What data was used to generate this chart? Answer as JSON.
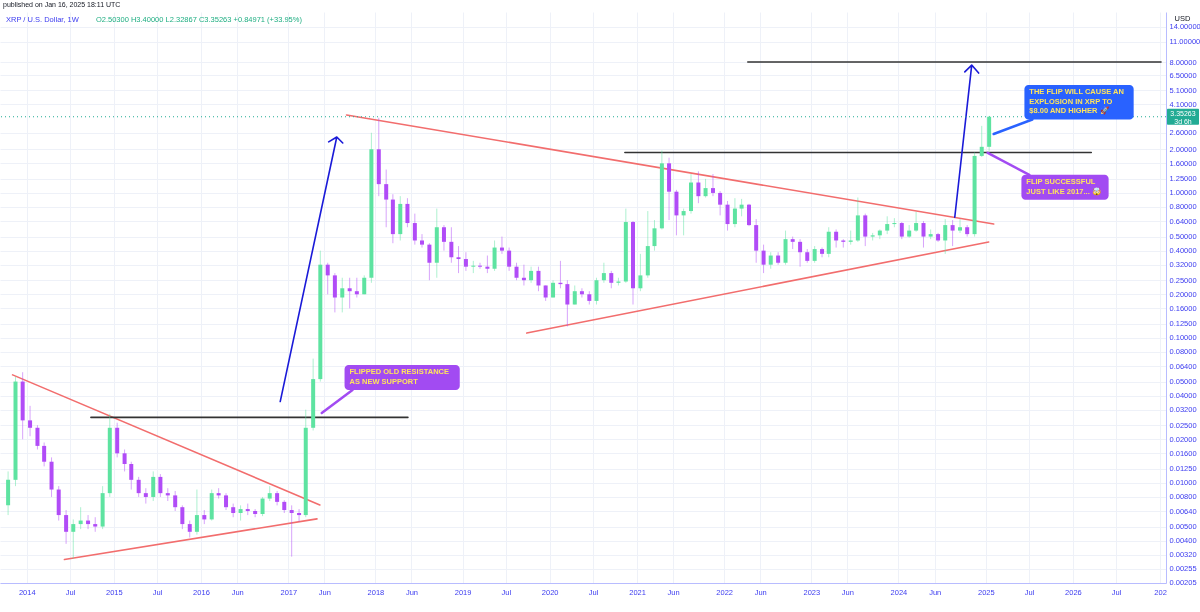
{
  "chart_data": {
    "type": "candlestick",
    "title": "XRP / U.S. Dollar, 1W",
    "subtitle": "O2.50300 H3.40000 L2.32867 C3.35263 +0.84971 (+33.95%)",
    "ylabel": "USD",
    "log": true,
    "grid": true,
    "xlim": [
      "2013-10-02",
      "2027-01-05"
    ],
    "ylim": [
      0.00204,
      17.7
    ],
    "xticks": [
      "2014",
      {
        "value": "2014-07-01",
        "label": "Jul"
      },
      "2015",
      {
        "value": "2015-07-01",
        "label": "Jul"
      },
      "2016",
      {
        "value": "2016-06-01",
        "label": "Jun"
      },
      "2017",
      {
        "value": "2017-06-01",
        "label": "Jun"
      },
      "2018",
      {
        "value": "2018-06-01",
        "label": "Jun"
      },
      "2019",
      {
        "value": "2019-07-01",
        "label": "Jul"
      },
      "2020",
      {
        "value": "2020-07-01",
        "label": "Jul"
      },
      "2021",
      {
        "value": "2021-06-01",
        "label": "Jun"
      },
      "2022",
      {
        "value": "2022-06-01",
        "label": "Jun"
      },
      "2023",
      {
        "value": "2023-06-01",
        "label": "Jun"
      },
      "2024",
      {
        "value": "2024-06-01",
        "label": "Jun"
      },
      "2025",
      {
        "value": "2025-07-01",
        "label": "Jul"
      },
      "2026",
      {
        "value": "2026-07-01",
        "label": "Jul"
      },
      {
        "value": "2027-01-01",
        "label": "202"
      }
    ],
    "yticks": [
      {
        "value": 14,
        "label": "14.00000"
      },
      {
        "value": 11,
        "label": "11.00000"
      },
      {
        "value": 8,
        "label": "8.00000"
      },
      {
        "value": 6.5,
        "label": "6.50000"
      },
      {
        "value": 5.1,
        "label": "5.10000"
      },
      {
        "value": 4.1,
        "label": "4.10000"
      },
      {
        "value": 2.6,
        "label": "2.60000"
      },
      {
        "value": 2,
        "label": "2.00000"
      },
      {
        "value": 1.6,
        "label": "1.60000"
      },
      {
        "value": 1.25,
        "label": "1.25000"
      },
      {
        "value": 1,
        "label": "1.00000"
      },
      {
        "value": 0.8,
        "label": "0.80000"
      },
      {
        "value": 0.64,
        "label": "0.64000"
      },
      {
        "value": 0.5,
        "label": "0.50000"
      },
      {
        "value": 0.4,
        "label": "0.40000"
      },
      {
        "value": 0.32,
        "label": "0.32000"
      },
      {
        "value": 0.25,
        "label": "0.25000"
      },
      {
        "value": 0.2,
        "label": "0.20000"
      },
      {
        "value": 0.16,
        "label": "0.16000"
      },
      {
        "value": 0.125,
        "label": "0.12500"
      },
      {
        "value": 0.1,
        "label": "0.10000"
      },
      {
        "value": 0.08,
        "label": "0.08000"
      },
      {
        "value": 0.064,
        "label": "0.06400"
      },
      {
        "value": 0.05,
        "label": "0.05000"
      },
      {
        "value": 0.04,
        "label": "0.04000"
      },
      {
        "value": 0.032,
        "label": "0.03200"
      },
      {
        "value": 0.025,
        "label": "0.02500"
      },
      {
        "value": 0.02,
        "label": "0.02000"
      },
      {
        "value": 0.016,
        "label": "0.01600"
      },
      {
        "value": 0.0125,
        "label": "0.01250"
      },
      {
        "value": 0.01,
        "label": "0.01000"
      },
      {
        "value": 0.008,
        "label": "0.00800"
      },
      {
        "value": 0.0064,
        "label": "0.00640"
      },
      {
        "value": 0.005,
        "label": "0.00500"
      },
      {
        "value": 0.004,
        "label": "0.00400"
      },
      {
        "value": 0.0032,
        "label": "0.00320"
      },
      {
        "value": 0.00255,
        "label": "0.00255"
      },
      {
        "value": 0.00205,
        "label": "0.00205"
      }
    ],
    "x": [
      "2013-10-15",
      "2013-11-15",
      "2013-12-15",
      "2014-01-15",
      "2014-02-15",
      "2014-03-15",
      "2014-04-15",
      "2014-05-15",
      "2014-06-15",
      "2014-07-15",
      "2014-08-15",
      "2014-09-15",
      "2014-10-15",
      "2014-11-15",
      "2014-12-15",
      "2015-01-15",
      "2015-02-15",
      "2015-03-15",
      "2015-04-15",
      "2015-05-15",
      "2015-06-15",
      "2015-07-15",
      "2015-08-15",
      "2015-09-15",
      "2015-10-15",
      "2015-11-15",
      "2015-12-15",
      "2016-01-15",
      "2016-02-15",
      "2016-03-15",
      "2016-04-15",
      "2016-05-15",
      "2016-06-15",
      "2016-07-15",
      "2016-08-15",
      "2016-09-15",
      "2016-10-15",
      "2016-11-15",
      "2016-12-15",
      "2017-01-15",
      "2017-02-15",
      "2017-03-15",
      "2017-04-15",
      "2017-05-15",
      "2017-06-15",
      "2017-07-15",
      "2017-08-15",
      "2017-09-15",
      "2017-10-15",
      "2017-11-15",
      "2017-12-15",
      "2018-01-15",
      "2018-02-15",
      "2018-03-15",
      "2018-04-15",
      "2018-05-15",
      "2018-06-15",
      "2018-07-15",
      "2018-08-15",
      "2018-09-15",
      "2018-10-15",
      "2018-11-15",
      "2018-12-15",
      "2019-01-15",
      "2019-02-15",
      "2019-03-15",
      "2019-04-15",
      "2019-05-15",
      "2019-06-15",
      "2019-07-15",
      "2019-08-15",
      "2019-09-15",
      "2019-10-15",
      "2019-11-15",
      "2019-12-15",
      "2020-01-15",
      "2020-02-15",
      "2020-03-15",
      "2020-04-15",
      "2020-05-15",
      "2020-06-15",
      "2020-07-15",
      "2020-08-15",
      "2020-09-15",
      "2020-10-15",
      "2020-11-15",
      "2020-12-15",
      "2021-01-15",
      "2021-02-15",
      "2021-03-15",
      "2021-04-15",
      "2021-05-15",
      "2021-06-15",
      "2021-07-15",
      "2021-08-15",
      "2021-09-15",
      "2021-10-15",
      "2021-11-15",
      "2021-12-15",
      "2022-01-15",
      "2022-02-15",
      "2022-03-15",
      "2022-04-15",
      "2022-05-15",
      "2022-06-15",
      "2022-07-15",
      "2022-08-15",
      "2022-09-15",
      "2022-10-15",
      "2022-11-15",
      "2022-12-15",
      "2023-01-15",
      "2023-02-15",
      "2023-03-15",
      "2023-04-15",
      "2023-05-15",
      "2023-06-15",
      "2023-07-15",
      "2023-08-15",
      "2023-09-15",
      "2023-10-15",
      "2023-11-15",
      "2023-12-15",
      "2024-01-15",
      "2024-02-15",
      "2024-03-15",
      "2024-04-15",
      "2024-05-15",
      "2024-06-15",
      "2024-07-15",
      "2024-08-15",
      "2024-09-15",
      "2024-10-15",
      "2024-11-15",
      "2024-12-15",
      "2025-01-15"
    ],
    "ohlc": [
      [
        0.007,
        0.012,
        0.006,
        0.0105
      ],
      [
        0.0105,
        0.054,
        0.0095,
        0.05
      ],
      [
        0.05,
        0.058,
        0.02,
        0.027
      ],
      [
        0.027,
        0.034,
        0.021,
        0.024
      ],
      [
        0.024,
        0.025,
        0.017,
        0.018
      ],
      [
        0.018,
        0.019,
        0.013,
        0.014
      ],
      [
        0.014,
        0.015,
        0.008,
        0.009
      ],
      [
        0.009,
        0.0095,
        0.0055,
        0.006
      ],
      [
        0.006,
        0.0065,
        0.0038,
        0.0046
      ],
      [
        0.0046,
        0.0056,
        0.003,
        0.0052
      ],
      [
        0.0052,
        0.0068,
        0.0048,
        0.0055
      ],
      [
        0.0055,
        0.006,
        0.0048,
        0.0052
      ],
      [
        0.0052,
        0.0058,
        0.0046,
        0.005
      ],
      [
        0.005,
        0.0095,
        0.0048,
        0.0085
      ],
      [
        0.0085,
        0.03,
        0.008,
        0.024
      ],
      [
        0.024,
        0.026,
        0.015,
        0.016
      ],
      [
        0.016,
        0.017,
        0.012,
        0.0135
      ],
      [
        0.0135,
        0.014,
        0.009,
        0.0105
      ],
      [
        0.0105,
        0.011,
        0.008,
        0.0085
      ],
      [
        0.0085,
        0.0092,
        0.0072,
        0.008
      ],
      [
        0.008,
        0.012,
        0.0075,
        0.011
      ],
      [
        0.011,
        0.0115,
        0.008,
        0.0085
      ],
      [
        0.0085,
        0.0092,
        0.0075,
        0.0082
      ],
      [
        0.0082,
        0.0088,
        0.0064,
        0.0068
      ],
      [
        0.0068,
        0.007,
        0.0048,
        0.0052
      ],
      [
        0.0052,
        0.0055,
        0.0042,
        0.0046
      ],
      [
        0.0046,
        0.009,
        0.0044,
        0.006
      ],
      [
        0.006,
        0.0065,
        0.0052,
        0.0056
      ],
      [
        0.0056,
        0.009,
        0.0055,
        0.0085
      ],
      [
        0.0085,
        0.0092,
        0.0078,
        0.0082
      ],
      [
        0.0082,
        0.0085,
        0.0065,
        0.0068
      ],
      [
        0.0068,
        0.0072,
        0.0058,
        0.0062
      ],
      [
        0.0062,
        0.007,
        0.0055,
        0.0066
      ],
      [
        0.0066,
        0.0072,
        0.006,
        0.0064
      ],
      [
        0.0064,
        0.0066,
        0.0058,
        0.0061
      ],
      [
        0.0061,
        0.008,
        0.0059,
        0.0078
      ],
      [
        0.0078,
        0.0095,
        0.0075,
        0.0085
      ],
      [
        0.0085,
        0.0088,
        0.007,
        0.0074
      ],
      [
        0.0074,
        0.0076,
        0.0062,
        0.0065
      ],
      [
        0.0065,
        0.007,
        0.0031,
        0.0062
      ],
      [
        0.0062,
        0.0066,
        0.0054,
        0.006
      ],
      [
        0.006,
        0.032,
        0.0058,
        0.024
      ],
      [
        0.024,
        0.072,
        0.023,
        0.052
      ],
      [
        0.052,
        0.4,
        0.05,
        0.32
      ],
      [
        0.32,
        0.33,
        0.2,
        0.27
      ],
      [
        0.27,
        0.28,
        0.15,
        0.19
      ],
      [
        0.19,
        0.26,
        0.15,
        0.22
      ],
      [
        0.22,
        0.26,
        0.16,
        0.21
      ],
      [
        0.21,
        0.26,
        0.19,
        0.2
      ],
      [
        0.2,
        0.27,
        0.2,
        0.26
      ],
      [
        0.26,
        2.6,
        0.24,
        2.0
      ],
      [
        2.0,
        3.3,
        0.95,
        1.15
      ],
      [
        1.15,
        1.45,
        0.58,
        0.9
      ],
      [
        0.9,
        0.98,
        0.45,
        0.52
      ],
      [
        0.52,
        0.95,
        0.47,
        0.84
      ],
      [
        0.84,
        0.92,
        0.58,
        0.62
      ],
      [
        0.62,
        0.72,
        0.44,
        0.47
      ],
      [
        0.47,
        0.52,
        0.42,
        0.44
      ],
      [
        0.44,
        0.45,
        0.25,
        0.33
      ],
      [
        0.33,
        0.78,
        0.26,
        0.58
      ],
      [
        0.58,
        0.6,
        0.4,
        0.46
      ],
      [
        0.46,
        0.58,
        0.33,
        0.36
      ],
      [
        0.36,
        0.43,
        0.28,
        0.35
      ],
      [
        0.35,
        0.39,
        0.29,
        0.31
      ],
      [
        0.31,
        0.34,
        0.28,
        0.315
      ],
      [
        0.315,
        0.33,
        0.3,
        0.31
      ],
      [
        0.31,
        0.37,
        0.28,
        0.3
      ],
      [
        0.3,
        0.47,
        0.29,
        0.42
      ],
      [
        0.42,
        0.5,
        0.38,
        0.4
      ],
      [
        0.4,
        0.42,
        0.29,
        0.31
      ],
      [
        0.31,
        0.33,
        0.25,
        0.26
      ],
      [
        0.26,
        0.32,
        0.23,
        0.25
      ],
      [
        0.25,
        0.31,
        0.24,
        0.29
      ],
      [
        0.29,
        0.31,
        0.21,
        0.23
      ],
      [
        0.23,
        0.23,
        0.18,
        0.19
      ],
      [
        0.19,
        0.25,
        0.19,
        0.24
      ],
      [
        0.24,
        0.34,
        0.22,
        0.235
      ],
      [
        0.235,
        0.25,
        0.12,
        0.17
      ],
      [
        0.17,
        0.23,
        0.17,
        0.21
      ],
      [
        0.21,
        0.22,
        0.19,
        0.2
      ],
      [
        0.2,
        0.21,
        0.17,
        0.18
      ],
      [
        0.18,
        0.26,
        0.17,
        0.25
      ],
      [
        0.25,
        0.33,
        0.24,
        0.28
      ],
      [
        0.28,
        0.29,
        0.22,
        0.24
      ],
      [
        0.24,
        0.26,
        0.23,
        0.245
      ],
      [
        0.245,
        0.78,
        0.24,
        0.63
      ],
      [
        0.63,
        0.64,
        0.17,
        0.22
      ],
      [
        0.22,
        0.38,
        0.21,
        0.27
      ],
      [
        0.27,
        0.75,
        0.26,
        0.43
      ],
      [
        0.43,
        0.65,
        0.4,
        0.57
      ],
      [
        0.57,
        1.96,
        0.56,
        1.6
      ],
      [
        1.6,
        1.75,
        0.65,
        1.02
      ],
      [
        1.02,
        1.05,
        0.51,
        0.7
      ],
      [
        0.7,
        0.78,
        0.51,
        0.75
      ],
      [
        0.75,
        1.35,
        0.72,
        1.18
      ],
      [
        1.18,
        1.41,
        0.85,
        0.95
      ],
      [
        0.95,
        1.25,
        0.93,
        1.08
      ],
      [
        1.08,
        1.35,
        0.95,
        1.0
      ],
      [
        1.0,
        1.03,
        0.7,
        0.83
      ],
      [
        0.83,
        0.88,
        0.55,
        0.61
      ],
      [
        0.61,
        0.92,
        0.58,
        0.78
      ],
      [
        0.78,
        0.91,
        0.69,
        0.83
      ],
      [
        0.83,
        0.84,
        0.59,
        0.6
      ],
      [
        0.6,
        0.66,
        0.33,
        0.4
      ],
      [
        0.4,
        0.44,
        0.28,
        0.32
      ],
      [
        0.32,
        0.39,
        0.3,
        0.37
      ],
      [
        0.37,
        0.39,
        0.32,
        0.33
      ],
      [
        0.33,
        0.55,
        0.32,
        0.48
      ],
      [
        0.48,
        0.5,
        0.41,
        0.46
      ],
      [
        0.46,
        0.48,
        0.31,
        0.39
      ],
      [
        0.39,
        0.41,
        0.33,
        0.34
      ],
      [
        0.34,
        0.43,
        0.33,
        0.41
      ],
      [
        0.41,
        0.42,
        0.36,
        0.38
      ],
      [
        0.38,
        0.58,
        0.36,
        0.54
      ],
      [
        0.54,
        0.56,
        0.42,
        0.47
      ],
      [
        0.47,
        0.48,
        0.42,
        0.46
      ],
      [
        0.46,
        0.55,
        0.44,
        0.47
      ],
      [
        0.47,
        0.93,
        0.46,
        0.7
      ],
      [
        0.7,
        0.72,
        0.43,
        0.5
      ],
      [
        0.5,
        0.53,
        0.47,
        0.51
      ],
      [
        0.51,
        0.56,
        0.48,
        0.55
      ],
      [
        0.55,
        0.69,
        0.52,
        0.61
      ],
      [
        0.61,
        0.67,
        0.58,
        0.62
      ],
      [
        0.62,
        0.63,
        0.48,
        0.5
      ],
      [
        0.5,
        0.6,
        0.49,
        0.55
      ],
      [
        0.55,
        0.74,
        0.54,
        0.62
      ],
      [
        0.62,
        0.64,
        0.42,
        0.5
      ],
      [
        0.5,
        0.56,
        0.48,
        0.52
      ],
      [
        0.52,
        0.53,
        0.46,
        0.47
      ],
      [
        0.47,
        0.66,
        0.38,
        0.6
      ],
      [
        0.6,
        0.65,
        0.43,
        0.55
      ],
      [
        0.55,
        0.66,
        0.53,
        0.58
      ],
      [
        0.58,
        0.6,
        0.5,
        0.52
      ],
      [
        0.52,
        1.9,
        0.5,
        1.8
      ],
      [
        1.8,
        2.9,
        1.77,
        2.08
      ],
      [
        2.08,
        3.4,
        1.95,
        3.35263
      ]
    ],
    "colors": [
      "#5ee3a1",
      "#5ee3a1",
      "#b14cf7",
      "#b14cf7",
      "#b14cf7",
      "#b14cf7",
      "#b14cf7",
      "#b14cf7",
      "#b14cf7",
      "#5ee3a1",
      "#5ee3a1",
      "#b14cf7",
      "#b14cf7",
      "#5ee3a1",
      "#5ee3a1",
      "#b14cf7",
      "#b14cf7",
      "#b14cf7",
      "#b14cf7",
      "#b14cf7",
      "#5ee3a1",
      "#b14cf7",
      "#b14cf7",
      "#b14cf7",
      "#b14cf7",
      "#b14cf7",
      "#5ee3a1",
      "#b14cf7",
      "#5ee3a1",
      "#b14cf7",
      "#b14cf7",
      "#b14cf7",
      "#5ee3a1",
      "#b14cf7",
      "#b14cf7",
      "#5ee3a1",
      "#5ee3a1",
      "#b14cf7",
      "#b14cf7",
      "#b14cf7",
      "#b14cf7",
      "#5ee3a1",
      "#5ee3a1",
      "#5ee3a1",
      "#b14cf7",
      "#b14cf7",
      "#5ee3a1",
      "#b14cf7",
      "#b14cf7",
      "#5ee3a1",
      "#5ee3a1",
      "#b14cf7",
      "#b14cf7",
      "#b14cf7",
      "#5ee3a1",
      "#b14cf7",
      "#b14cf7",
      "#b14cf7",
      "#b14cf7",
      "#5ee3a1",
      "#b14cf7",
      "#b14cf7",
      "#b14cf7",
      "#b14cf7",
      "#5ee3a1",
      "#b14cf7",
      "#b14cf7",
      "#5ee3a1",
      "#b14cf7",
      "#b14cf7",
      "#b14cf7",
      "#b14cf7",
      "#5ee3a1",
      "#b14cf7",
      "#b14cf7",
      "#5ee3a1",
      "#b14cf7",
      "#b14cf7",
      "#5ee3a1",
      "#b14cf7",
      "#b14cf7",
      "#5ee3a1",
      "#5ee3a1",
      "#b14cf7",
      "#5ee3a1",
      "#5ee3a1",
      "#b14cf7",
      "#5ee3a1",
      "#5ee3a1",
      "#5ee3a1",
      "#5ee3a1",
      "#b14cf7",
      "#b14cf7",
      "#5ee3a1",
      "#5ee3a1",
      "#b14cf7",
      "#5ee3a1",
      "#b14cf7",
      "#b14cf7",
      "#b14cf7",
      "#5ee3a1",
      "#5ee3a1",
      "#b14cf7",
      "#b14cf7",
      "#b14cf7",
      "#5ee3a1",
      "#b14cf7",
      "#5ee3a1",
      "#b14cf7",
      "#b14cf7",
      "#b14cf7",
      "#5ee3a1",
      "#b14cf7",
      "#5ee3a1",
      "#b14cf7",
      "#b14cf7",
      "#5ee3a1",
      "#5ee3a1",
      "#b14cf7",
      "#5ee3a1",
      "#5ee3a1",
      "#5ee3a1",
      "#5ee3a1",
      "#b14cf7",
      "#5ee3a1",
      "#5ee3a1",
      "#b14cf7",
      "#5ee3a1",
      "#b14cf7",
      "#5ee3a1",
      "#b14cf7",
      "#5ee3a1",
      "#b14cf7",
      "#5ee3a1",
      "#5ee3a1",
      "#5ee3a1"
    ],
    "series": [
      {
        "type": "line",
        "color": "#f26d6d",
        "x": [
          "2013-11-03",
          "2017-05-13"
        ],
        "values": [
          0.0556,
          0.00705
        ]
      },
      {
        "type": "line",
        "color": "#f26d6d",
        "x": [
          "2014-06-08",
          "2017-05-01"
        ],
        "values": [
          0.00296,
          0.00565
        ]
      },
      {
        "type": "line",
        "color": "#f26d6d",
        "x": [
          "2017-09-02",
          "2025-02-03"
        ],
        "values": [
          3.45,
          0.61
        ]
      },
      {
        "type": "line",
        "color": "#f26d6d",
        "x": [
          "2019-09-27",
          "2025-01-13"
        ],
        "values": [
          0.108,
          0.459
        ]
      },
      {
        "type": "line",
        "color": "#333333",
        "x": [
          "2014-09-27",
          "2018-05-17"
        ],
        "values": [
          0.0283,
          0.0283
        ]
      },
      {
        "type": "line",
        "color": "#333333",
        "x": [
          "2020-11-11",
          "2026-03-19"
        ],
        "values": [
          1.9,
          1.9
        ]
      },
      {
        "type": "line",
        "color": "#333333",
        "x": [
          "2022-04-10",
          "2027-01-05"
        ],
        "values": [
          8,
          8
        ]
      },
      {
        "type": "line",
        "color": "#1a1ad8",
        "x": [
          "2016-11-28",
          "2017-07-23",
          "2017-06-19",
          "2017-07-23",
          "2017-08-17"
        ],
        "values": [
          0.0364,
          2.43,
          2.25,
          2.43,
          2.21
        ]
      },
      {
        "type": "line",
        "color": "#1a1ad8",
        "x": [
          "2024-08-24",
          "2024-11-03",
          "2024-10-05",
          "2024-11-03",
          "2024-12-02"
        ],
        "values": [
          0.68,
          7.62,
          6.84,
          7.62,
          6.71
        ]
      }
    ],
    "ref_lines": [
      {
        "axis": "y",
        "value": 3.35263,
        "label": "3.35263\n3d 6h",
        "color": "#22ab94",
        "line_style": "dotted"
      }
    ],
    "annotations": [
      "published on Jan 16, 2025 18:11 UTC",
      {
        "text": "FLIPPED OLD RESISTANCE\nAS NEW SUPPORT",
        "x": "2017-05-21",
        "y": 0.0304
      },
      {
        "text": "THE FLIP WILL CAUSE AN\nEXPLOSION IN XRP TO\n$8.00 AND HIGHER 🚀",
        "x": "2025-02-03",
        "y": 2.55
      },
      {
        "text": "FLIP SUCCESSFUL\nJUST LIKE 2017... 🤯",
        "x": "2025-01-09",
        "y": 1.89
      }
    ]
  }
}
